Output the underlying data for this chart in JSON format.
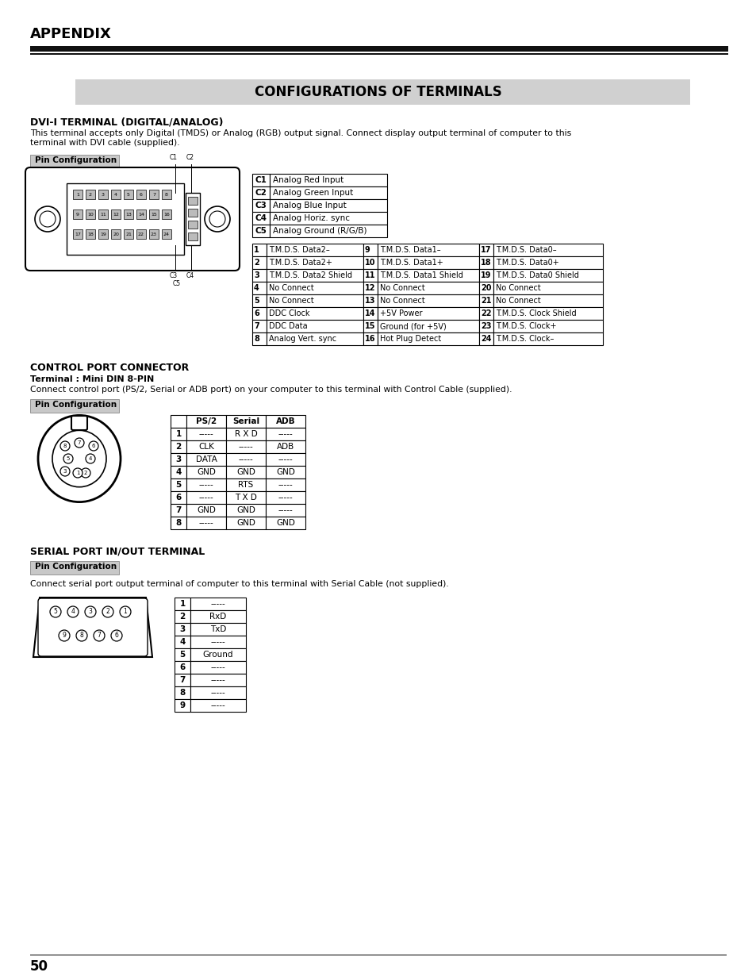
{
  "page_bg": "#ffffff",
  "header_text": "APPENDIX",
  "title_text": "CONFIGURATIONS OF TERMINALS",
  "title_bg": "#d0d0d0",
  "section1_title": "DVI-I TERMINAL (DIGITAL/ANALOG)",
  "section1_desc1": "This terminal accepts only Digital (TMDS) or Analog (RGB) output signal. Connect display output terminal of computer to this",
  "section1_desc2": "terminal with DVI cable (supplied).",
  "pin_config_label": "Pin Configuration",
  "pin_config_bg": "#c8c8c8",
  "c_table": [
    [
      "C1",
      "Analog Red Input"
    ],
    [
      "C2",
      "Analog Green Input"
    ],
    [
      "C3",
      "Analog Blue Input"
    ],
    [
      "C4",
      "Analog Horiz. sync"
    ],
    [
      "C5",
      "Analog Ground (R/G/B)"
    ]
  ],
  "dvi_table": [
    [
      "1",
      "T.M.D.S. Data2–",
      "9",
      "T.M.D.S. Data1–",
      "17",
      "T.M.D.S. Data0–"
    ],
    [
      "2",
      "T.M.D.S. Data2+",
      "10",
      "T.M.D.S. Data1+",
      "18",
      "T.M.D.S. Data0+"
    ],
    [
      "3",
      "T.M.D.S. Data2 Shield",
      "11",
      "T.M.D.S. Data1 Shield",
      "19",
      "T.M.D.S. Data0 Shield"
    ],
    [
      "4",
      "No Connect",
      "12",
      "No Connect",
      "20",
      "No Connect"
    ],
    [
      "5",
      "No Connect",
      "13",
      "No Connect",
      "21",
      "No Connect"
    ],
    [
      "6",
      "DDC Clock",
      "14",
      "+5V Power",
      "22",
      "T.M.D.S. Clock Shield"
    ],
    [
      "7",
      "DDC Data",
      "15",
      "Ground (for +5V)",
      "23",
      "T.M.D.S. Clock+"
    ],
    [
      "8",
      "Analog Vert. sync",
      "16",
      "Hot Plug Detect",
      "24",
      "T.M.D.S. Clock–"
    ]
  ],
  "section2_title": "CONTROL PORT CONNECTOR",
  "section2_subtitle": "Terminal : Mini DIN 8-PIN",
  "section2_desc": "Connect control port (PS/2, Serial or ADB port) on your computer to this terminal with Control Cable (supplied).",
  "ctrl_table_headers": [
    "",
    "PS/2",
    "Serial",
    "ADB"
  ],
  "ctrl_table": [
    [
      "1",
      "-----",
      "R X D",
      "-----"
    ],
    [
      "2",
      "CLK",
      "-----",
      "ADB"
    ],
    [
      "3",
      "DATA",
      "-----",
      "-----"
    ],
    [
      "4",
      "GND",
      "GND",
      "GND"
    ],
    [
      "5",
      "-----",
      "RTS",
      "-----"
    ],
    [
      "6",
      "-----",
      "T X D",
      "-----"
    ],
    [
      "7",
      "GND",
      "GND",
      "-----"
    ],
    [
      "8",
      "-----",
      "GND",
      "GND"
    ]
  ],
  "section3_title": "SERIAL PORT IN/OUT TERMINAL",
  "section3_desc": "Connect serial port output terminal of computer to this terminal with Serial Cable (not supplied).",
  "serial_table": [
    [
      "1",
      "-----"
    ],
    [
      "2",
      "RxD"
    ],
    [
      "3",
      "TxD"
    ],
    [
      "4",
      "-----"
    ],
    [
      "5",
      "Ground"
    ],
    [
      "6",
      "-----"
    ],
    [
      "7",
      "-----"
    ],
    [
      "8",
      "-----"
    ],
    [
      "9",
      "-----"
    ]
  ],
  "footer_page": "50"
}
